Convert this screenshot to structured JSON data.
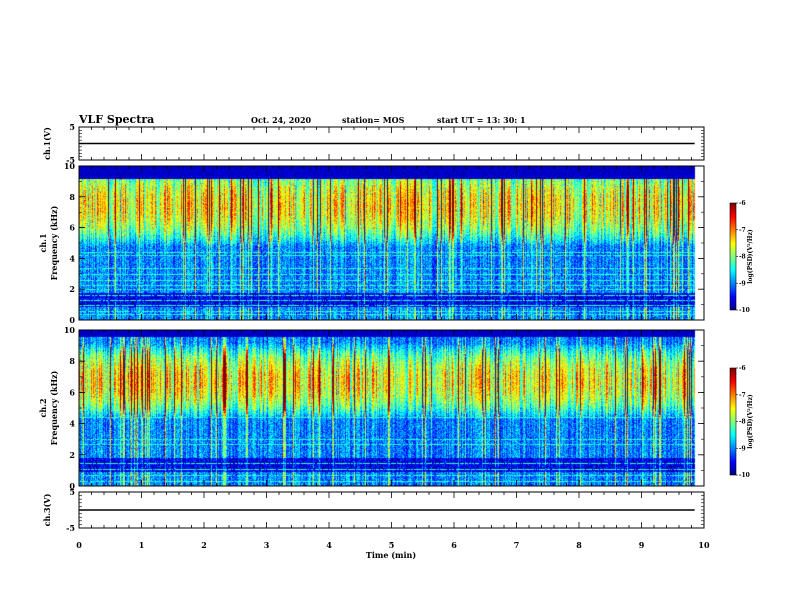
{
  "header": {
    "title": "VLF Spectra",
    "date": "Oct. 24, 2020",
    "station": "station= MOS",
    "start": "start  UT  =   13: 30: 1"
  },
  "chart_data": [
    {
      "type": "line",
      "panel": "ch1-waveform",
      "ylabel": "ch.1(V)",
      "ylim": [
        -5,
        5
      ],
      "yticks": [
        "5",
        "-5"
      ],
      "xlim": [
        0,
        10
      ],
      "series": [
        {
          "x": [
            0,
            9.85
          ],
          "values": [
            0,
            0
          ]
        }
      ]
    },
    {
      "type": "heatmap",
      "panel": "ch1-spectrogram",
      "ylabel": "ch.1",
      "ylabel2": "Frequency (kHz)",
      "ylim": [
        0,
        10
      ],
      "yticks": [
        "0",
        "2",
        "4",
        "6",
        "8",
        "10"
      ],
      "xlim": [
        0,
        10
      ],
      "data_end_min": 9.85,
      "hot_band_khz": [
        6,
        9
      ],
      "cutoff_khz": 9.2,
      "colorbar": {
        "label": "log(PSD)(V²/Hz)",
        "range": [
          -10,
          -6
        ],
        "ticks": [
          "-6",
          "-7",
          "-8",
          "-9",
          "-10"
        ]
      }
    },
    {
      "type": "heatmap",
      "panel": "ch2-spectrogram",
      "ylabel": "ch.2",
      "ylabel2": "Frequency (kHz)",
      "ylim": [
        0,
        10
      ],
      "yticks": [
        "0",
        "2",
        "4",
        "6",
        "8",
        "10"
      ],
      "xlim": [
        0,
        10
      ],
      "data_end_min": 9.85,
      "hot_band_khz": [
        5.5,
        8
      ],
      "cutoff_khz": 9.6,
      "colorbar": {
        "label": "log(PSD)(V²/Hz)",
        "range": [
          -10,
          -6
        ],
        "ticks": [
          "-6",
          "-7",
          "-8",
          "-9",
          "-10"
        ]
      }
    },
    {
      "type": "line",
      "panel": "ch3-waveform",
      "ylabel": "ch.3(V)",
      "ylim": [
        -5,
        5
      ],
      "yticks": [
        "5",
        "-5"
      ],
      "xlim": [
        0,
        10
      ],
      "xticks": [
        "0",
        "1",
        "2",
        "3",
        "4",
        "5",
        "6",
        "7",
        "8",
        "9",
        "10"
      ],
      "xlabel": "Time (min)",
      "series": [
        {
          "x": [
            0,
            9.85
          ],
          "values": [
            0,
            0
          ]
        }
      ]
    }
  ]
}
